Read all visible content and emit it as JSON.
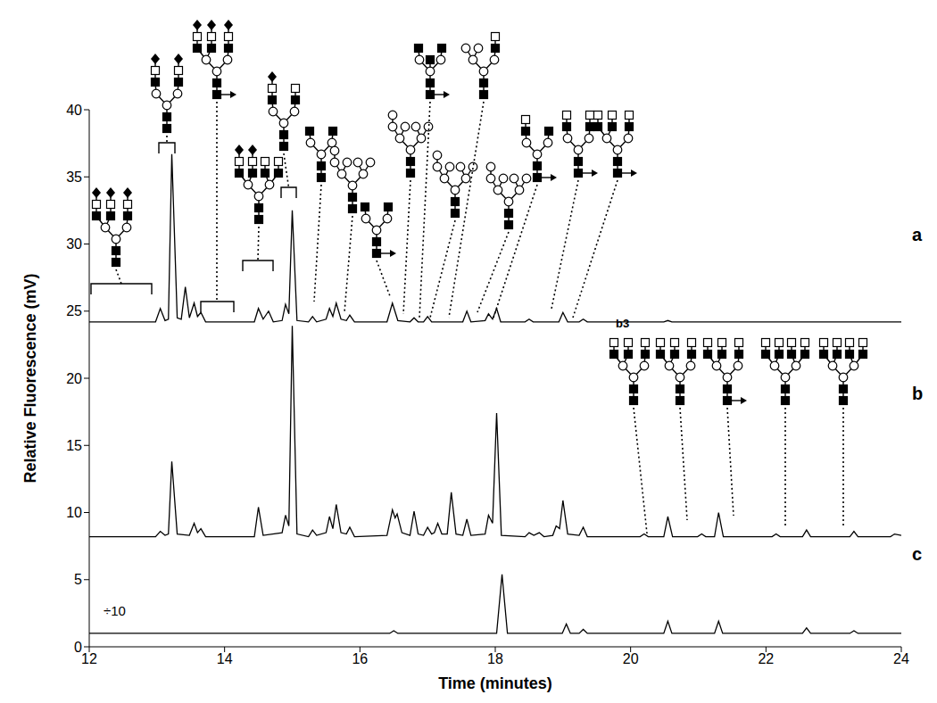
{
  "chart_data": {
    "type": "line",
    "x_label": "Time (minutes)",
    "y_label": "Relative Fluorescence (mV)",
    "xlim": [
      12,
      24
    ],
    "xticks": [
      12,
      14,
      16,
      18,
      20,
      22,
      24
    ],
    "ylim": [
      0,
      40
    ],
    "yticks": [
      0,
      5,
      10,
      15,
      20,
      25,
      30,
      35,
      40
    ],
    "grid": false,
    "annotations": [
      "÷10",
      "b3"
    ],
    "series": [
      {
        "name": "a",
        "color": "#000000",
        "x": [
          12,
          12.98,
          13.05,
          13.12,
          13.17,
          13.22,
          13.3,
          13.36,
          13.42,
          13.48,
          13.55,
          13.6,
          13.65,
          13.72,
          14.44,
          14.5,
          14.57,
          14.65,
          14.72,
          14.85,
          14.9,
          14.95,
          15.0,
          15.07,
          15.24,
          15.3,
          15.36,
          15.5,
          15.55,
          15.6,
          15.65,
          15.72,
          15.8,
          15.85,
          15.92,
          16.4,
          16.48,
          16.56,
          16.74,
          16.8,
          16.86,
          16.94,
          17.0,
          17.06,
          17.52,
          17.58,
          17.64,
          17.85,
          17.9,
          17.96,
          18.02,
          18.08,
          18.44,
          18.5,
          18.56,
          18.94,
          19.0,
          19.07,
          19.24,
          19.3,
          19.36,
          20.49,
          20.55,
          20.61,
          24
        ],
        "values": [
          24.2,
          24.2,
          25.2,
          24.3,
          24.4,
          36.7,
          24.5,
          24.4,
          26.8,
          24.5,
          25.6,
          24.6,
          24.9,
          24.2,
          24.2,
          25.2,
          24.4,
          25.0,
          24.2,
          24.3,
          25.5,
          24.8,
          32.5,
          24.3,
          24.2,
          24.6,
          24.2,
          24.4,
          25.2,
          24.6,
          25.6,
          24.4,
          24.3,
          24.7,
          24.2,
          24.2,
          25.6,
          24.3,
          24.2,
          24.5,
          24.2,
          24.2,
          24.6,
          24.2,
          24.2,
          25.0,
          24.2,
          24.3,
          24.8,
          24.4,
          25.2,
          24.2,
          24.2,
          24.4,
          24.2,
          24.2,
          24.9,
          24.2,
          24.2,
          24.4,
          24.2,
          24.2,
          24.3,
          24.2,
          24.2
        ]
      },
      {
        "name": "b",
        "color": "#000000",
        "x": [
          12,
          12.98,
          13.05,
          13.12,
          13.17,
          13.22,
          13.3,
          13.48,
          13.55,
          13.6,
          13.65,
          13.72,
          14.44,
          14.5,
          14.57,
          14.85,
          14.9,
          14.95,
          15.0,
          15.07,
          15.24,
          15.3,
          15.36,
          15.5,
          15.55,
          15.6,
          15.65,
          15.72,
          15.8,
          15.85,
          15.92,
          16.4,
          16.48,
          16.52,
          16.55,
          16.62,
          16.74,
          16.8,
          16.86,
          16.94,
          17.0,
          17.06,
          17.1,
          17.15,
          17.21,
          17.29,
          17.35,
          17.42,
          17.52,
          17.58,
          17.64,
          17.85,
          17.9,
          17.96,
          18.02,
          18.09,
          18.44,
          18.5,
          18.57,
          18.65,
          18.72,
          18.85,
          18.9,
          18.95,
          19.0,
          19.07,
          19.24,
          19.3,
          19.36,
          20.14,
          20.2,
          20.26,
          20.49,
          20.55,
          20.62,
          20.99,
          21.05,
          21.11,
          21.24,
          21.3,
          21.37,
          22.09,
          22.15,
          22.21,
          22.54,
          22.6,
          22.66,
          23.24,
          23.3,
          23.36,
          23.84,
          23.9,
          24
        ],
        "values": [
          8.2,
          8.2,
          8.6,
          8.3,
          8.4,
          13.8,
          8.4,
          8.3,
          9.2,
          8.5,
          8.8,
          8.2,
          8.2,
          10.4,
          8.3,
          8.5,
          9.8,
          9.0,
          23.9,
          8.4,
          8.2,
          8.7,
          8.3,
          8.5,
          9.7,
          8.8,
          10.6,
          8.5,
          8.4,
          8.9,
          8.2,
          8.3,
          10.2,
          9.6,
          9.9,
          8.5,
          8.3,
          10.1,
          8.4,
          8.3,
          8.9,
          8.4,
          8.5,
          9.2,
          8.4,
          8.4,
          11.5,
          8.4,
          8.3,
          9.5,
          8.3,
          8.4,
          9.8,
          9.2,
          17.4,
          8.3,
          8.2,
          8.5,
          8.3,
          8.5,
          8.2,
          8.3,
          9.0,
          8.8,
          10.9,
          8.4,
          8.3,
          8.9,
          8.2,
          8.2,
          8.4,
          8.2,
          8.2,
          9.7,
          8.2,
          8.2,
          8.4,
          8.2,
          8.2,
          10.0,
          8.2,
          8.2,
          8.4,
          8.2,
          8.2,
          8.7,
          8.2,
          8.2,
          8.6,
          8.2,
          8.2,
          8.4,
          8.3
        ]
      },
      {
        "name": "c",
        "color": "#000000",
        "x": [
          12,
          16.44,
          16.5,
          16.56,
          18.02,
          18.1,
          18.18,
          18.99,
          19.05,
          19.11,
          19.24,
          19.3,
          19.36,
          20.49,
          20.55,
          20.61,
          21.24,
          21.3,
          21.36,
          22.54,
          22.6,
          22.66,
          23.24,
          23.3,
          23.36,
          24
        ],
        "values": [
          1.0,
          1.0,
          1.2,
          1.0,
          1.0,
          5.4,
          1.0,
          1.0,
          1.7,
          1.0,
          1.0,
          1.3,
          1.0,
          1.0,
          1.9,
          1.0,
          1.0,
          1.9,
          1.0,
          1.0,
          1.4,
          1.0,
          1.0,
          1.2,
          1.0,
          1.0
        ]
      }
    ]
  }
}
